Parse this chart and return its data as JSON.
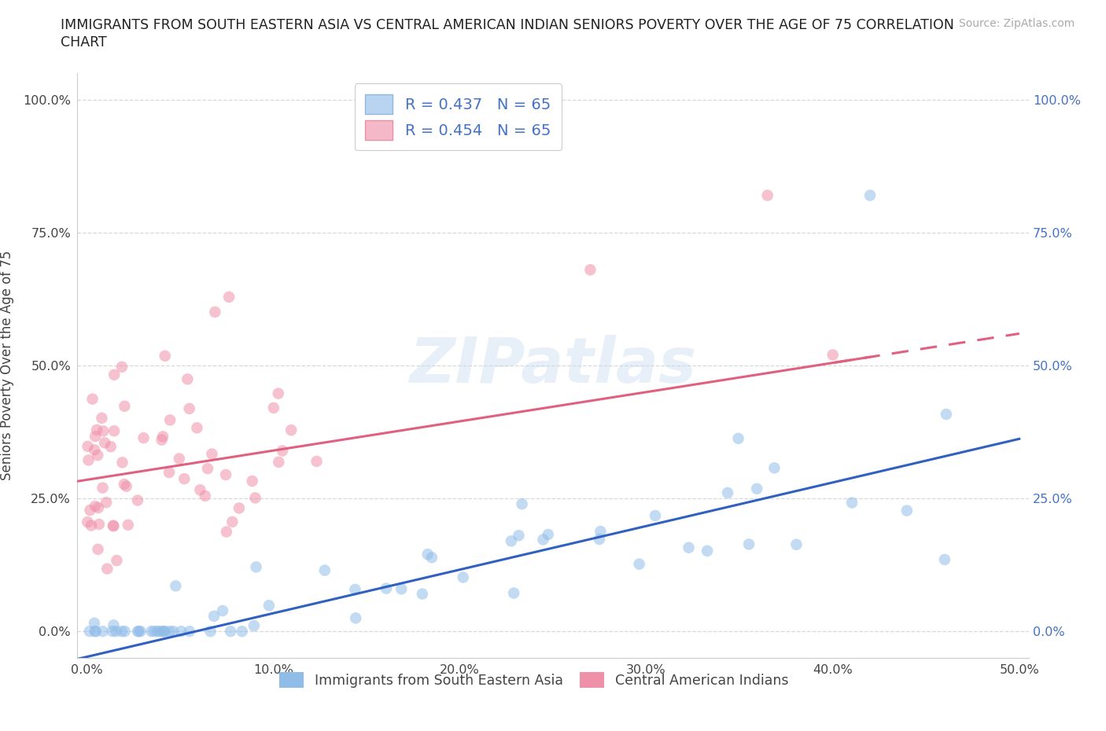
{
  "title_line1": "IMMIGRANTS FROM SOUTH EASTERN ASIA VS CENTRAL AMERICAN INDIAN SENIORS POVERTY OVER THE AGE OF 75 CORRELATION",
  "title_line2": "CHART",
  "source": "Source: ZipAtlas.com",
  "ylabel": "Seniors Poverty Over the Age of 75",
  "x_tick_labels": [
    "0.0%",
    "10.0%",
    "20.0%",
    "30.0%",
    "40.0%",
    "50.0%"
  ],
  "x_tick_vals": [
    0.0,
    0.1,
    0.2,
    0.3,
    0.4,
    0.5
  ],
  "y_tick_labels": [
    "0.0%",
    "25.0%",
    "50.0%",
    "75.0%",
    "100.0%"
  ],
  "y_tick_vals": [
    0.0,
    0.25,
    0.5,
    0.75,
    1.0
  ],
  "xlim": [
    -0.005,
    0.505
  ],
  "ylim": [
    -0.05,
    1.05
  ],
  "legend_entries": [
    {
      "label": "R = 0.437   N = 65",
      "facecolor": "#b8d4f0",
      "edgecolor": "#90b8e0"
    },
    {
      "label": "R = 0.454   N = 65",
      "facecolor": "#f5b8c8",
      "edgecolor": "#e890a8"
    }
  ],
  "series1_name": "Immigrants from South Eastern Asia",
  "series2_name": "Central American Indians",
  "series1_color": "#90bce8",
  "series2_color": "#f090a8",
  "series1_line_color": "#3060c0",
  "series2_line_color": "#e06080",
  "R1": 0.437,
  "R2": 0.454,
  "N1": 65,
  "N2": 65,
  "watermark_text": "ZIPatlas",
  "background_color": "#ffffff",
  "grid_color": "#d8d8d8",
  "title_color": "#222222",
  "axis_tick_color": "#444444",
  "label_color": "#444444",
  "right_tick_color": "#4472c4",
  "legend_text_color": "#4472c4",
  "source_color": "#aaaaaa",
  "blue_line_intercept": -0.048,
  "blue_line_slope": 0.82,
  "pink_line_intercept": 0.285,
  "pink_line_slope": 0.55
}
